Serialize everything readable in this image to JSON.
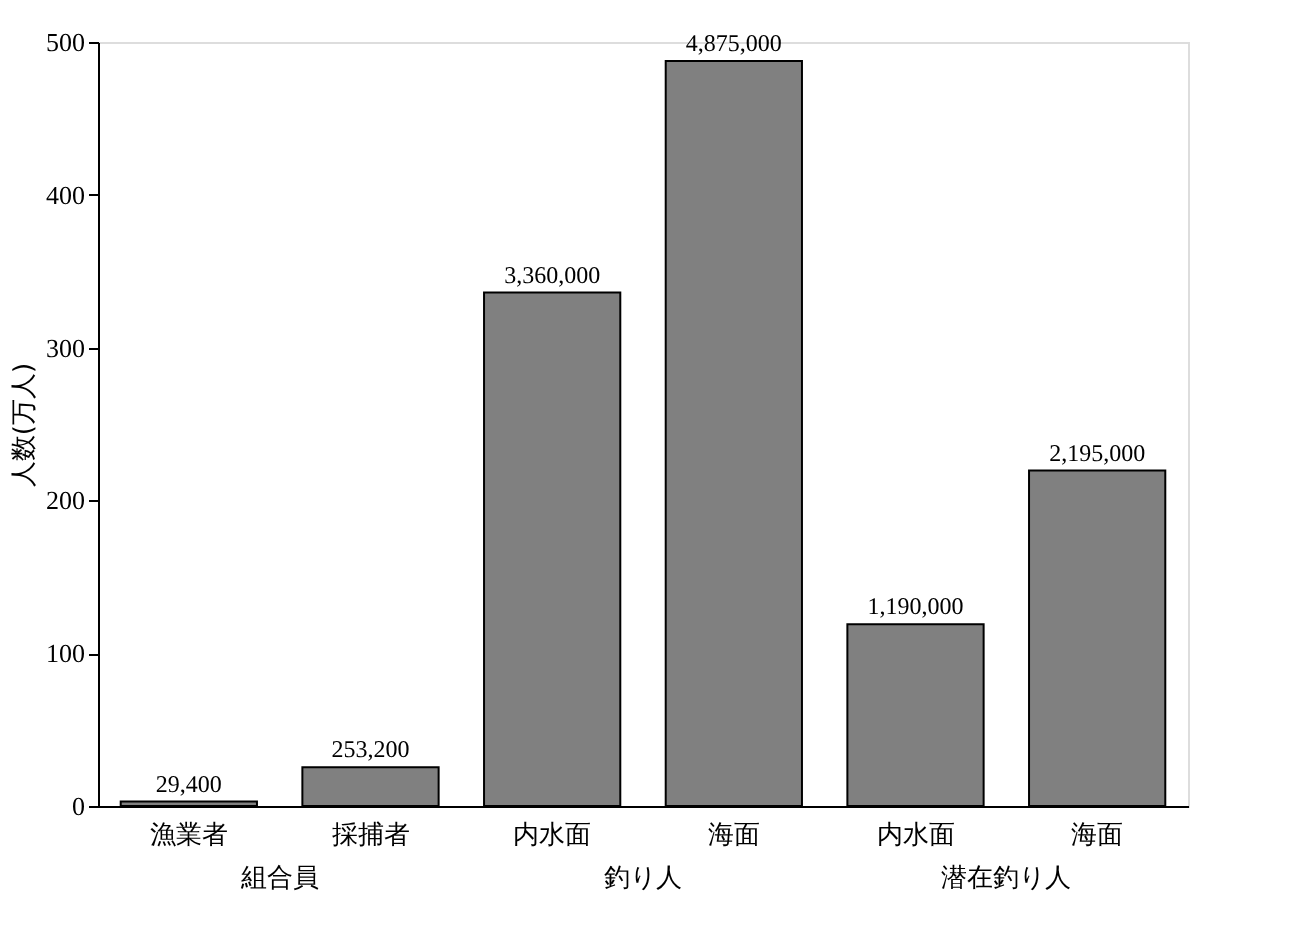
{
  "chart_data": {
    "type": "bar",
    "ylabel": "人数(万人)",
    "categories": [
      "漁業者",
      "採捕者",
      "内水面",
      "海面",
      "内水面",
      "海面"
    ],
    "values": [
      2.94,
      25.32,
      336,
      487.5,
      119,
      219.5
    ],
    "color": "#808080",
    "ylim": [
      0,
      500
    ],
    "yticks": [
      0,
      100,
      200,
      300,
      400,
      500
    ],
    "grid": false,
    "annotations": [
      "29,400",
      "253,200",
      "3,360,000",
      "4,875,000",
      "1,190,000",
      "2,195,000",
      "組合員",
      "釣り人",
      "潜在釣り人"
    ]
  }
}
